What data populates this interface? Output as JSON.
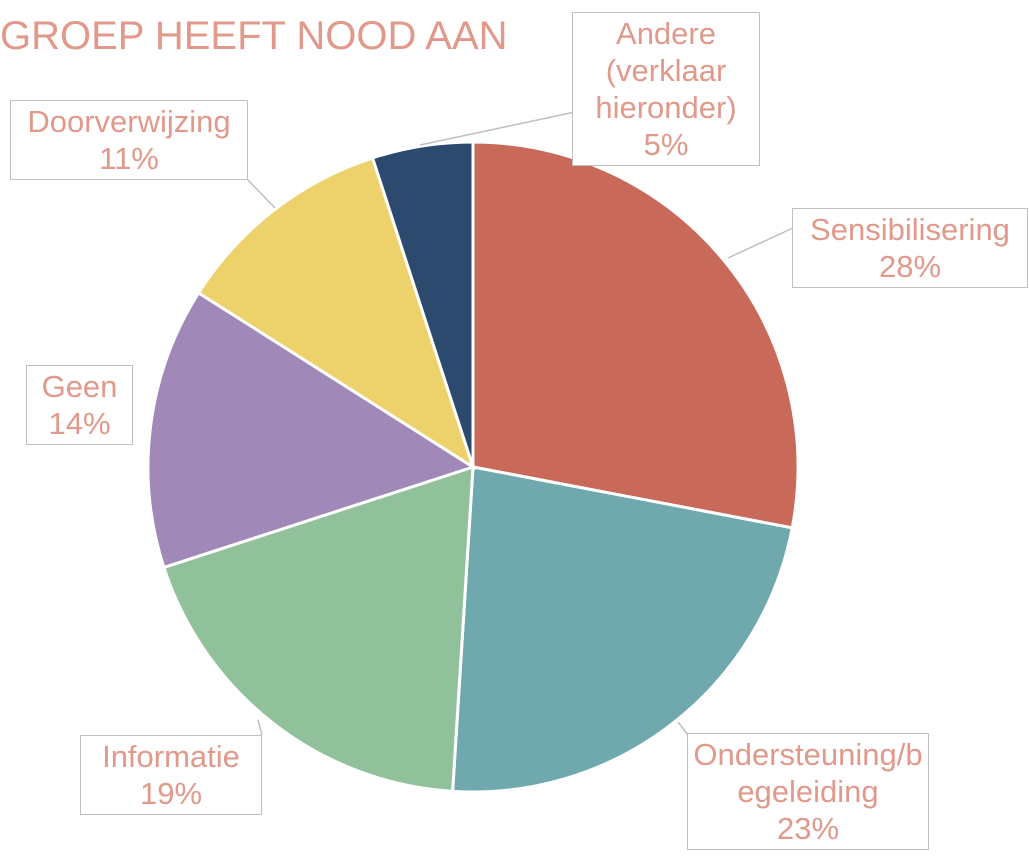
{
  "chart_data": {
    "type": "pie",
    "title": "GROEP HEEFT NOOD AAN",
    "categories": [
      "Sensibilisering",
      "Ondersteuning/begeleiding",
      "Informatie",
      "Geen",
      "Doorverwijzing",
      "Andere (verklaar hieronder)"
    ],
    "values": [
      28,
      23,
      19,
      14,
      11,
      5
    ],
    "value_labels": [
      "28%",
      "23%",
      "19%",
      "14%",
      "11%",
      "5%"
    ],
    "colors": [
      "#c8695a",
      "#6fa9ad",
      "#90c19b",
      "#a088b9",
      "#edd16b",
      "#2b4a6e"
    ]
  }
}
